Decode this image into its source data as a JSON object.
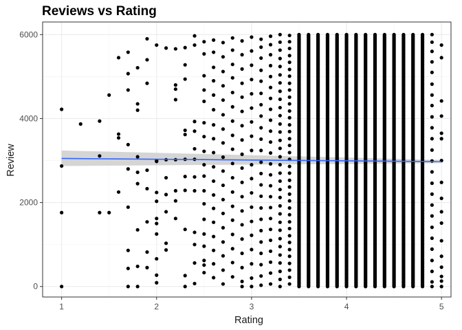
{
  "chart_data": {
    "type": "scatter",
    "title": "Reviews vs Rating",
    "xlabel": "Rating",
    "ylabel": "Review",
    "xlim": [
      0.8,
      5.1
    ],
    "ylim": [
      -250,
      6300
    ],
    "x_ticks": [
      1,
      2,
      3,
      4,
      5
    ],
    "y_ticks": [
      0,
      2000,
      4000,
      6000
    ],
    "x_tick_labels": [
      "1",
      "2",
      "3",
      "4",
      "5"
    ],
    "y_tick_labels": [
      "0",
      "2000",
      "4000",
      "6000"
    ],
    "grid": true,
    "theme": "bw",
    "point_color": "#000000",
    "dense_columns": [
      {
        "x": 3.5,
        "ymin": 0,
        "ymax": 6000
      },
      {
        "x": 3.6,
        "ymin": 0,
        "ymax": 6000
      },
      {
        "x": 3.7,
        "ymin": 0,
        "ymax": 6000
      },
      {
        "x": 3.8,
        "ymin": 0,
        "ymax": 6000
      },
      {
        "x": 3.9,
        "ymin": 0,
        "ymax": 6000
      },
      {
        "x": 4.0,
        "ymin": 0,
        "ymax": 6000
      },
      {
        "x": 4.1,
        "ymin": 0,
        "ymax": 6000
      },
      {
        "x": 4.2,
        "ymin": 0,
        "ymax": 6000
      },
      {
        "x": 4.3,
        "ymin": 0,
        "ymax": 6000
      },
      {
        "x": 4.4,
        "ymin": 0,
        "ymax": 6000
      },
      {
        "x": 4.5,
        "ymin": 0,
        "ymax": 6000
      },
      {
        "x": 4.6,
        "ymin": 0,
        "ymax": 6000
      },
      {
        "x": 4.7,
        "ymin": 0,
        "ymax": 6000
      },
      {
        "x": 4.8,
        "ymin": 0,
        "ymax": 6000
      }
    ],
    "points": [
      [
        1.0,
        4220
      ],
      [
        1.0,
        2870
      ],
      [
        1.0,
        1760
      ],
      [
        1.0,
        0
      ],
      [
        1.2,
        3870
      ],
      [
        1.4,
        3940
      ],
      [
        1.4,
        3110
      ],
      [
        1.4,
        1760
      ],
      [
        1.5,
        4560
      ],
      [
        1.5,
        1760
      ],
      [
        1.6,
        5450
      ],
      [
        1.6,
        3630
      ],
      [
        1.6,
        3540
      ],
      [
        1.6,
        2250
      ],
      [
        1.7,
        5580
      ],
      [
        1.7,
        5070
      ],
      [
        1.7,
        4680
      ],
      [
        1.7,
        3380
      ],
      [
        1.7,
        2800
      ],
      [
        1.7,
        1890
      ],
      [
        1.7,
        860
      ],
      [
        1.7,
        430
      ],
      [
        1.7,
        0
      ],
      [
        1.8,
        5210
      ],
      [
        1.8,
        4350
      ],
      [
        1.8,
        4200
      ],
      [
        1.8,
        3090
      ],
      [
        1.8,
        2720
      ],
      [
        1.8,
        2450
      ],
      [
        1.8,
        1350
      ],
      [
        1.8,
        480
      ],
      [
        1.8,
        0
      ],
      [
        1.9,
        5900
      ],
      [
        1.9,
        5400
      ],
      [
        1.9,
        4840
      ],
      [
        1.9,
        2770
      ],
      [
        1.9,
        2330
      ],
      [
        1.9,
        1540
      ],
      [
        1.9,
        820
      ],
      [
        1.9,
        450
      ],
      [
        2.0,
        5750
      ],
      [
        2.0,
        3000
      ],
      [
        2.0,
        2980
      ],
      [
        2.0,
        2240
      ],
      [
        2.0,
        2030
      ],
      [
        2.0,
        1620
      ],
      [
        2.0,
        1500
      ],
      [
        2.0,
        1250
      ],
      [
        2.0,
        660
      ],
      [
        2.0,
        270
      ],
      [
        2.0,
        90
      ],
      [
        2.1,
        5680
      ],
      [
        2.1,
        3020
      ],
      [
        2.1,
        2590
      ],
      [
        2.1,
        2190
      ],
      [
        2.1,
        1780
      ],
      [
        2.1,
        1030
      ],
      [
        2.1,
        870
      ],
      [
        2.2,
        5660
      ],
      [
        2.2,
        4800
      ],
      [
        2.2,
        4700
      ],
      [
        2.2,
        4450
      ],
      [
        2.2,
        3020
      ],
      [
        2.2,
        2280
      ],
      [
        2.2,
        2040
      ],
      [
        2.2,
        1620
      ],
      [
        2.3,
        5690
      ],
      [
        2.3,
        5280
      ],
      [
        2.3,
        4940
      ],
      [
        2.3,
        3720
      ],
      [
        2.3,
        3620
      ],
      [
        2.3,
        3030
      ],
      [
        2.3,
        2620
      ],
      [
        2.3,
        2290
      ],
      [
        2.3,
        1360
      ],
      [
        2.3,
        260
      ],
      [
        2.3,
        0
      ],
      [
        2.4,
        5970
      ],
      [
        2.4,
        5750
      ],
      [
        2.4,
        3930
      ],
      [
        2.4,
        3700
      ],
      [
        2.4,
        3280
      ],
      [
        2.4,
        3030
      ],
      [
        2.4,
        2610
      ],
      [
        2.4,
        2280
      ],
      [
        2.4,
        1290
      ],
      [
        2.4,
        1000
      ],
      [
        2.4,
        560
      ],
      [
        2.4,
        70
      ],
      [
        2.5,
        5830
      ],
      [
        2.5,
        5540
      ],
      [
        2.5,
        5020
      ],
      [
        2.5,
        4680
      ],
      [
        2.5,
        4410
      ],
      [
        2.5,
        3900
      ],
      [
        2.5,
        3570
      ],
      [
        2.5,
        3220
      ],
      [
        2.5,
        2900
      ],
      [
        2.5,
        2630
      ],
      [
        2.5,
        2280
      ],
      [
        2.5,
        1970
      ],
      [
        2.5,
        1600
      ],
      [
        2.5,
        1250
      ],
      [
        2.5,
        960
      ],
      [
        2.5,
        620
      ],
      [
        2.5,
        510
      ],
      [
        2.5,
        330
      ],
      [
        2.6,
        5870
      ],
      [
        2.6,
        5580
      ],
      [
        2.6,
        5220
      ],
      [
        2.6,
        4900
      ],
      [
        2.6,
        4560
      ],
      [
        2.6,
        4210
      ],
      [
        2.6,
        3850
      ],
      [
        2.6,
        3520
      ],
      [
        2.6,
        3190
      ],
      [
        2.6,
        2850
      ],
      [
        2.6,
        2510
      ],
      [
        2.6,
        2180
      ],
      [
        2.6,
        1860
      ],
      [
        2.6,
        1530
      ],
      [
        2.6,
        1190
      ],
      [
        2.6,
        860
      ],
      [
        2.6,
        540
      ],
      [
        2.6,
        210
      ],
      [
        2.7,
        5810
      ],
      [
        2.7,
        5470
      ],
      [
        2.7,
        5120
      ],
      [
        2.7,
        4780
      ],
      [
        2.7,
        4440
      ],
      [
        2.7,
        4090
      ],
      [
        2.7,
        3750
      ],
      [
        2.7,
        3420
      ],
      [
        2.7,
        3080
      ],
      [
        2.7,
        2750
      ],
      [
        2.7,
        2410
      ],
      [
        2.7,
        2070
      ],
      [
        2.7,
        1740
      ],
      [
        2.7,
        1400
      ],
      [
        2.7,
        1060
      ],
      [
        2.7,
        730
      ],
      [
        2.7,
        390
      ],
      [
        2.7,
        60
      ],
      [
        2.8,
        5920
      ],
      [
        2.8,
        5630
      ],
      [
        2.8,
        5290
      ],
      [
        2.8,
        4970
      ],
      [
        2.8,
        4620
      ],
      [
        2.8,
        4280
      ],
      [
        2.8,
        3940
      ],
      [
        2.8,
        3600
      ],
      [
        2.8,
        3270
      ],
      [
        2.8,
        2930
      ],
      [
        2.8,
        2590
      ],
      [
        2.8,
        2250
      ],
      [
        2.8,
        1910
      ],
      [
        2.8,
        1580
      ],
      [
        2.8,
        1240
      ],
      [
        2.8,
        900
      ],
      [
        2.8,
        570
      ],
      [
        2.8,
        230
      ],
      [
        2.9,
        5850
      ],
      [
        2.9,
        5520
      ],
      [
        2.9,
        5180
      ],
      [
        2.9,
        4840
      ],
      [
        2.9,
        4510
      ],
      [
        2.9,
        4170
      ],
      [
        2.9,
        3830
      ],
      [
        2.9,
        3490
      ],
      [
        2.9,
        3150
      ],
      [
        2.9,
        2820
      ],
      [
        2.9,
        2480
      ],
      [
        2.9,
        2140
      ],
      [
        2.9,
        1800
      ],
      [
        2.9,
        1470
      ],
      [
        2.9,
        1130
      ],
      [
        2.9,
        790
      ],
      [
        2.9,
        450
      ],
      [
        2.9,
        120
      ],
      [
        2.9,
        0
      ],
      [
        3.0,
        5940
      ],
      [
        3.0,
        5610
      ],
      [
        3.0,
        5270
      ],
      [
        3.0,
        4930
      ],
      [
        3.0,
        4590
      ],
      [
        3.0,
        4250
      ],
      [
        3.0,
        3920
      ],
      [
        3.0,
        3580
      ],
      [
        3.0,
        3240
      ],
      [
        3.0,
        2900
      ],
      [
        3.0,
        2570
      ],
      [
        3.0,
        2230
      ],
      [
        3.0,
        1890
      ],
      [
        3.0,
        1550
      ],
      [
        3.0,
        1220
      ],
      [
        3.0,
        880
      ],
      [
        3.0,
        540
      ],
      [
        3.0,
        200
      ],
      [
        3.0,
        0
      ],
      [
        3.1,
        5890
      ],
      [
        3.1,
        5700
      ],
      [
        3.1,
        5440
      ],
      [
        3.1,
        5150
      ],
      [
        3.1,
        4890
      ],
      [
        3.1,
        4600
      ],
      [
        3.1,
        4330
      ],
      [
        3.1,
        4060
      ],
      [
        3.1,
        3780
      ],
      [
        3.1,
        3510
      ],
      [
        3.1,
        3240
      ],
      [
        3.1,
        2960
      ],
      [
        3.1,
        2690
      ],
      [
        3.1,
        2420
      ],
      [
        3.1,
        2150
      ],
      [
        3.1,
        1870
      ],
      [
        3.1,
        1600
      ],
      [
        3.1,
        1330
      ],
      [
        3.1,
        1060
      ],
      [
        3.1,
        790
      ],
      [
        3.1,
        520
      ],
      [
        3.1,
        250
      ],
      [
        3.1,
        30
      ],
      [
        3.2,
        5960
      ],
      [
        3.2,
        5760
      ],
      [
        3.2,
        5520
      ],
      [
        3.2,
        5260
      ],
      [
        3.2,
        5000
      ],
      [
        3.2,
        4740
      ],
      [
        3.2,
        4480
      ],
      [
        3.2,
        4220
      ],
      [
        3.2,
        3960
      ],
      [
        3.2,
        3700
      ],
      [
        3.2,
        3440
      ],
      [
        3.2,
        3180
      ],
      [
        3.2,
        2920
      ],
      [
        3.2,
        2660
      ],
      [
        3.2,
        2400
      ],
      [
        3.2,
        2140
      ],
      [
        3.2,
        1880
      ],
      [
        3.2,
        1620
      ],
      [
        3.2,
        1360
      ],
      [
        3.2,
        1100
      ],
      [
        3.2,
        840
      ],
      [
        3.2,
        580
      ],
      [
        3.2,
        320
      ],
      [
        3.2,
        60
      ],
      [
        3.3,
        6000
      ],
      [
        3.3,
        5820
      ],
      [
        3.3,
        5630
      ],
      [
        3.3,
        5430
      ],
      [
        3.3,
        5240
      ],
      [
        3.3,
        5040
      ],
      [
        3.3,
        4850
      ],
      [
        3.3,
        4650
      ],
      [
        3.3,
        4460
      ],
      [
        3.3,
        4260
      ],
      [
        3.3,
        4070
      ],
      [
        3.3,
        3870
      ],
      [
        3.3,
        3680
      ],
      [
        3.3,
        3480
      ],
      [
        3.3,
        3290
      ],
      [
        3.3,
        3090
      ],
      [
        3.3,
        2900
      ],
      [
        3.3,
        2700
      ],
      [
        3.3,
        2510
      ],
      [
        3.3,
        2310
      ],
      [
        3.3,
        2120
      ],
      [
        3.3,
        1920
      ],
      [
        3.3,
        1730
      ],
      [
        3.3,
        1530
      ],
      [
        3.3,
        1340
      ],
      [
        3.3,
        1140
      ],
      [
        3.3,
        950
      ],
      [
        3.3,
        750
      ],
      [
        3.3,
        560
      ],
      [
        3.3,
        360
      ],
      [
        3.3,
        170
      ],
      [
        3.3,
        0
      ],
      [
        3.4,
        5980
      ],
      [
        3.4,
        5830
      ],
      [
        3.4,
        5670
      ],
      [
        3.4,
        5500
      ],
      [
        3.4,
        5340
      ],
      [
        3.4,
        5170
      ],
      [
        3.4,
        5010
      ],
      [
        3.4,
        4840
      ],
      [
        3.4,
        4680
      ],
      [
        3.4,
        4510
      ],
      [
        3.4,
        4350
      ],
      [
        3.4,
        4180
      ],
      [
        3.4,
        4020
      ],
      [
        3.4,
        3850
      ],
      [
        3.4,
        3690
      ],
      [
        3.4,
        3520
      ],
      [
        3.4,
        3360
      ],
      [
        3.4,
        3190
      ],
      [
        3.4,
        3030
      ],
      [
        3.4,
        2860
      ],
      [
        3.4,
        2700
      ],
      [
        3.4,
        2530
      ],
      [
        3.4,
        2370
      ],
      [
        3.4,
        2200
      ],
      [
        3.4,
        2040
      ],
      [
        3.4,
        1870
      ],
      [
        3.4,
        1710
      ],
      [
        3.4,
        1540
      ],
      [
        3.4,
        1380
      ],
      [
        3.4,
        1210
      ],
      [
        3.4,
        1050
      ],
      [
        3.4,
        880
      ],
      [
        3.4,
        720
      ],
      [
        3.4,
        550
      ],
      [
        3.4,
        390
      ],
      [
        3.4,
        220
      ],
      [
        3.4,
        60
      ],
      [
        4.9,
        6000
      ],
      [
        4.9,
        5820
      ],
      [
        4.9,
        5600
      ],
      [
        4.9,
        5350
      ],
      [
        4.9,
        5100
      ],
      [
        4.9,
        4820
      ],
      [
        4.9,
        4560
      ],
      [
        4.9,
        4310
      ],
      [
        4.9,
        4040
      ],
      [
        4.9,
        3780
      ],
      [
        4.9,
        3520
      ],
      [
        4.9,
        3250
      ],
      [
        4.9,
        2990
      ],
      [
        4.9,
        2730
      ],
      [
        4.9,
        2460
      ],
      [
        4.9,
        2200
      ],
      [
        4.9,
        1940
      ],
      [
        4.9,
        1680
      ],
      [
        4.9,
        1410
      ],
      [
        4.9,
        1150
      ],
      [
        4.9,
        890
      ],
      [
        4.9,
        620
      ],
      [
        4.9,
        360
      ],
      [
        4.9,
        110
      ],
      [
        4.9,
        0
      ],
      [
        5.0,
        5750
      ],
      [
        5.0,
        5450
      ],
      [
        5.0,
        4420
      ],
      [
        5.0,
        4060
      ],
      [
        5.0,
        3650
      ],
      [
        5.0,
        3520
      ],
      [
        5.0,
        3000
      ],
      [
        5.0,
        2480
      ],
      [
        5.0,
        2100
      ],
      [
        5.0,
        1780
      ],
      [
        5.0,
        1510
      ],
      [
        5.0,
        1090
      ],
      [
        5.0,
        720
      ],
      [
        5.0,
        460
      ],
      [
        5.0,
        240
      ],
      [
        5.0,
        130
      ],
      [
        5.0,
        0
      ]
    ],
    "smooth": {
      "method": "lm",
      "color": "#3366FF",
      "band_color": "#d0d0d0",
      "x": [
        1.0,
        5.0
      ],
      "y": [
        3050,
        2975
      ],
      "ci_lower": [
        2870,
        2935
      ],
      "ci_upper": [
        3240,
        3015
      ]
    }
  }
}
